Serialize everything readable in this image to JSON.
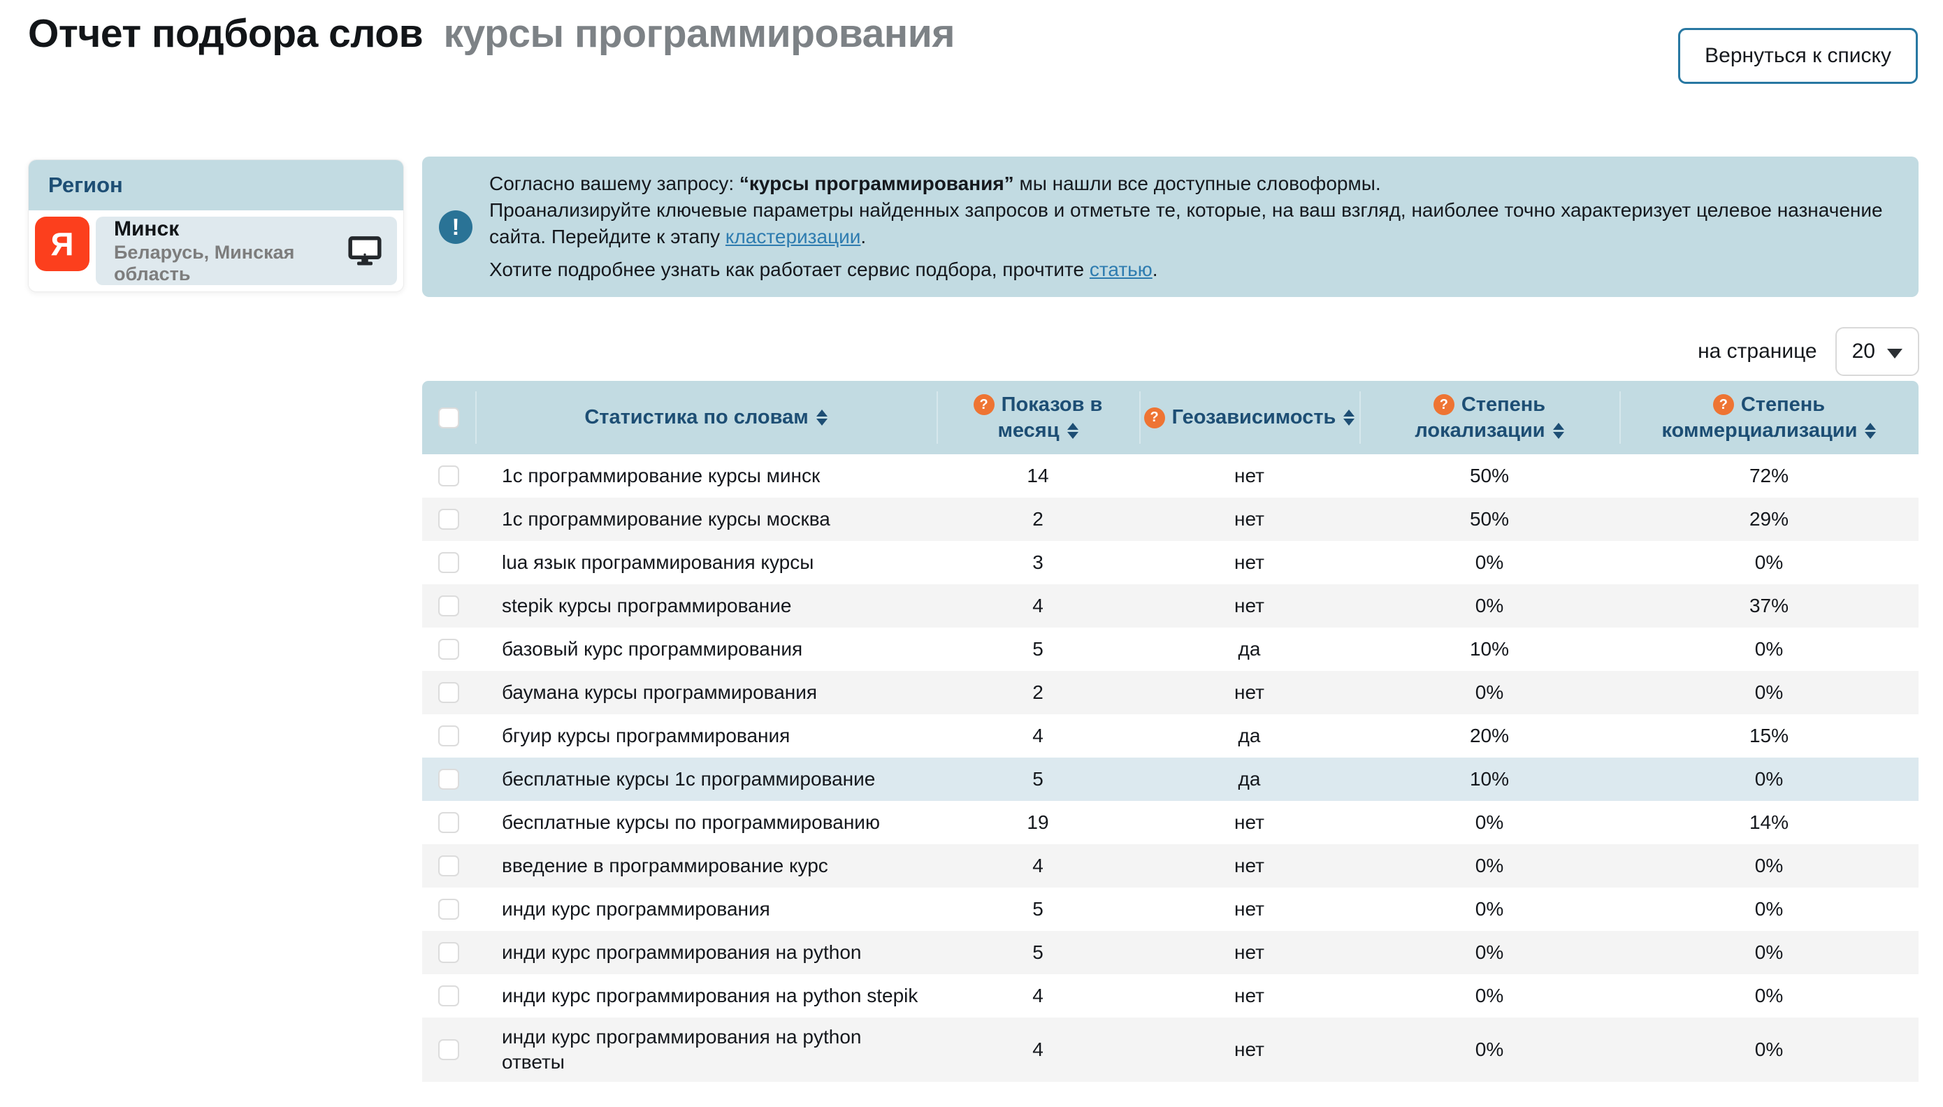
{
  "page": {
    "title_main": "Отчет подбора слов",
    "title_query": "курсы программирования",
    "back_button": "Вернуться к списку"
  },
  "region": {
    "header": "Регион",
    "engine_letter": "Я",
    "city": "Минск",
    "area": "Беларусь, Минская область"
  },
  "banner": {
    "line1_prefix": "Согласно вашему запросу: ",
    "line1_query": "“курсы программирования”",
    "line1_suffix": " мы нашли все доступные словоформы.",
    "line2_text": "Проанализируйте ключевые параметры найденных запросов и отметьте те, которые, на ваш взгляд, наиболее точно характеризует целевое назначение сайта. Перейдите к этапу ",
    "line2_link": "кластеризации",
    "line2_end": ".",
    "line3_text": "Хотите подробнее узнать как работает сервис подбора, прочтите ",
    "line3_link": "статью",
    "line3_end": "."
  },
  "pagination": {
    "label": "на странице",
    "value": "20"
  },
  "table": {
    "help_glyph": "?",
    "columns": [
      {
        "key": "keyword",
        "lines": [
          "Статистика по словам"
        ],
        "help": false
      },
      {
        "key": "impressions",
        "lines": [
          "Показов в",
          "месяц"
        ],
        "help": true
      },
      {
        "key": "geo",
        "lines": [
          "Геозависимость"
        ],
        "help": true
      },
      {
        "key": "localization",
        "lines": [
          "Степень",
          "локализации"
        ],
        "help": true
      },
      {
        "key": "commercialization",
        "lines": [
          "Степень",
          "коммерциализации"
        ],
        "help": true
      }
    ],
    "rows": [
      {
        "keyword": "1с программирование курсы минск",
        "impressions": "14",
        "geo": "нет",
        "localization": "50%",
        "commercialization": "72%"
      },
      {
        "keyword": "1с программирование курсы москва",
        "impressions": "2",
        "geo": "нет",
        "localization": "50%",
        "commercialization": "29%"
      },
      {
        "keyword": "lua язык программирования курсы",
        "impressions": "3",
        "geo": "нет",
        "localization": "0%",
        "commercialization": "0%"
      },
      {
        "keyword": "stepik курсы программирование",
        "impressions": "4",
        "geo": "нет",
        "localization": "0%",
        "commercialization": "37%"
      },
      {
        "keyword": "базовый курс программирования",
        "impressions": "5",
        "geo": "да",
        "localization": "10%",
        "commercialization": "0%"
      },
      {
        "keyword": "баумана курсы программирования",
        "impressions": "2",
        "geo": "нет",
        "localization": "0%",
        "commercialization": "0%"
      },
      {
        "keyword": "бгуир курсы программирования",
        "impressions": "4",
        "geo": "да",
        "localization": "20%",
        "commercialization": "15%"
      },
      {
        "keyword": "бесплатные курсы 1с программирование",
        "impressions": "5",
        "geo": "да",
        "localization": "10%",
        "commercialization": "0%",
        "highlight": true
      },
      {
        "keyword": "бесплатные курсы по программированию",
        "impressions": "19",
        "geo": "нет",
        "localization": "0%",
        "commercialization": "14%"
      },
      {
        "keyword": "введение в программирование курс",
        "impressions": "4",
        "geo": "нет",
        "localization": "0%",
        "commercialization": "0%"
      },
      {
        "keyword": "инди курс программирования",
        "impressions": "5",
        "geo": "нет",
        "localization": "0%",
        "commercialization": "0%"
      },
      {
        "keyword": "инди курс программирования на python",
        "impressions": "5",
        "geo": "нет",
        "localization": "0%",
        "commercialization": "0%"
      },
      {
        "keyword": "инди курс программирования на python stepik",
        "impressions": "4",
        "geo": "нет",
        "localization": "0%",
        "commercialization": "0%"
      },
      {
        "keyword": "инди курс программирования на python ответы",
        "impressions": "4",
        "geo": "нет",
        "localization": "0%",
        "commercialization": "0%"
      }
    ]
  },
  "colors": {
    "header_blue": "#c2dbe2",
    "highlight_blue": "#dce9ef",
    "stripe_gray": "#f4f4f4",
    "pill_blue": "#dfe9ee",
    "navy": "#1d4e74",
    "orange": "#ee7433",
    "link_blue": "#2e7cb0",
    "info_circle": "#2a7396",
    "yandex_red": "#fc3f1d",
    "button_border": "#2878a2",
    "title_gray": "#7d8286"
  }
}
